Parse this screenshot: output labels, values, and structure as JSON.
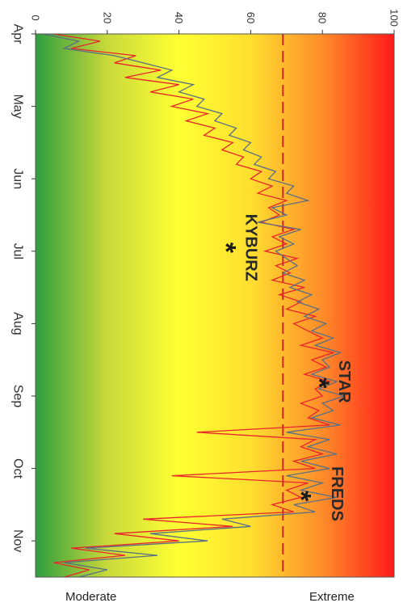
{
  "chart_data": {
    "type": "line",
    "orientation": "rotated-90-clockwise",
    "x": {
      "label": "",
      "ticks": [
        "Apr",
        "May",
        "Jun",
        "Jul",
        "Aug",
        "Sep",
        "Oct",
        "Nov"
      ],
      "range": [
        "Apr 1",
        "Nov 15"
      ]
    },
    "y": {
      "label": "",
      "ticks": [
        0,
        20,
        40,
        60,
        80,
        100
      ],
      "range": [
        0,
        100
      ]
    },
    "background_gradient": {
      "direction": "low-to-high",
      "colors": [
        "#2e9e3e",
        "#c8d93a",
        "#ffff33",
        "#ffdf2f",
        "#ff8c2a",
        "#ff1a1a"
      ],
      "low_label": "Moderate",
      "high_label": "Extreme"
    },
    "reference_line": {
      "value": 69,
      "style": "dashed",
      "color": "#c8282a"
    },
    "series": [
      {
        "color": "#e8262b",
        "x_month_fraction": [
          0,
          0.1,
          0.2,
          0.3,
          0.4,
          0.5,
          0.6,
          0.7,
          0.8,
          0.9,
          1.0,
          1.1,
          1.2,
          1.3,
          1.4,
          1.5,
          1.6,
          1.7,
          1.8,
          1.9,
          2.0,
          2.1,
          2.2,
          2.3,
          2.4,
          2.5,
          2.6,
          2.7,
          2.8,
          2.9,
          3.0,
          3.1,
          3.2,
          3.3,
          3.4,
          3.5,
          3.6,
          3.7,
          3.8,
          3.9,
          4.0,
          4.1,
          4.2,
          4.3,
          4.4,
          4.5,
          4.6,
          4.7,
          4.8,
          4.9,
          5.0,
          5.1,
          5.2,
          5.3,
          5.4,
          5.5,
          5.6,
          5.7,
          5.8,
          5.9,
          6.0,
          6.1,
          6.2,
          6.3,
          6.4,
          6.5,
          6.6,
          6.7,
          6.8,
          6.9,
          7.0,
          7.1,
          7.2,
          7.3,
          7.4,
          7.5
        ],
        "values": [
          5,
          18,
          10,
          28,
          22,
          35,
          25,
          40,
          32,
          44,
          38,
          48,
          42,
          50,
          47,
          55,
          52,
          58,
          56,
          63,
          60,
          66,
          62,
          70,
          65,
          68,
          63,
          72,
          66,
          70,
          64,
          73,
          67,
          71,
          66,
          75,
          68,
          74,
          70,
          78,
          72,
          76,
          80,
          74,
          83,
          77,
          81,
          75,
          82,
          78,
          80,
          74,
          79,
          76,
          82,
          45,
          78,
          74,
          80,
          72,
          78,
          38,
          76,
          70,
          74,
          66,
          72,
          30,
          55,
          22,
          40,
          10,
          25,
          5,
          15,
          8
        ]
      },
      {
        "color": "#5a6f82",
        "x_month_fraction": [
          0,
          0.1,
          0.2,
          0.3,
          0.4,
          0.5,
          0.6,
          0.7,
          0.8,
          0.9,
          1.0,
          1.1,
          1.2,
          1.3,
          1.4,
          1.5,
          1.6,
          1.7,
          1.8,
          1.9,
          2.0,
          2.1,
          2.2,
          2.3,
          2.4,
          2.5,
          2.6,
          2.7,
          2.8,
          2.9,
          3.0,
          3.1,
          3.2,
          3.3,
          3.4,
          3.5,
          3.6,
          3.7,
          3.8,
          3.9,
          4.0,
          4.1,
          4.2,
          4.3,
          4.4,
          4.5,
          4.6,
          4.7,
          4.8,
          4.9,
          5.0,
          5.1,
          5.2,
          5.3,
          5.4,
          5.5,
          5.6,
          5.7,
          5.8,
          5.9,
          6.0,
          6.1,
          6.2,
          6.3,
          6.4,
          6.5,
          6.6,
          6.7,
          6.8,
          6.9,
          7.0,
          7.1,
          7.2,
          7.3,
          7.4,
          7.5
        ],
        "values": [
          2,
          12,
          8,
          22,
          30,
          38,
          34,
          44,
          40,
          47,
          45,
          52,
          50,
          56,
          54,
          60,
          58,
          63,
          61,
          67,
          65,
          72,
          70,
          76,
          66,
          70,
          62,
          74,
          68,
          72,
          67,
          70,
          73,
          69,
          75,
          71,
          77,
          73,
          79,
          75,
          81,
          77,
          83,
          78,
          85,
          80,
          82,
          77,
          84,
          79,
          86,
          80,
          83,
          77,
          85,
          70,
          82,
          76,
          84,
          74,
          82,
          70,
          80,
          74,
          84,
          72,
          78,
          52,
          60,
          32,
          48,
          14,
          34,
          8,
          20,
          12
        ]
      }
    ],
    "annotations": [
      {
        "text": "KYBURZ",
        "x_month_fraction": 2.95,
        "value": 60
      },
      {
        "text": "STAR",
        "x_month_fraction": 4.8,
        "value": 86
      },
      {
        "text": "FREDS",
        "x_month_fraction": 6.35,
        "value": 84
      }
    ],
    "markers": [
      {
        "symbol": "*",
        "x_month_fraction": 2.95,
        "value": 53
      },
      {
        "symbol": "*",
        "x_month_fraction": 4.82,
        "value": 79
      },
      {
        "symbol": "*",
        "x_month_fraction": 6.38,
        "value": 74
      }
    ]
  }
}
